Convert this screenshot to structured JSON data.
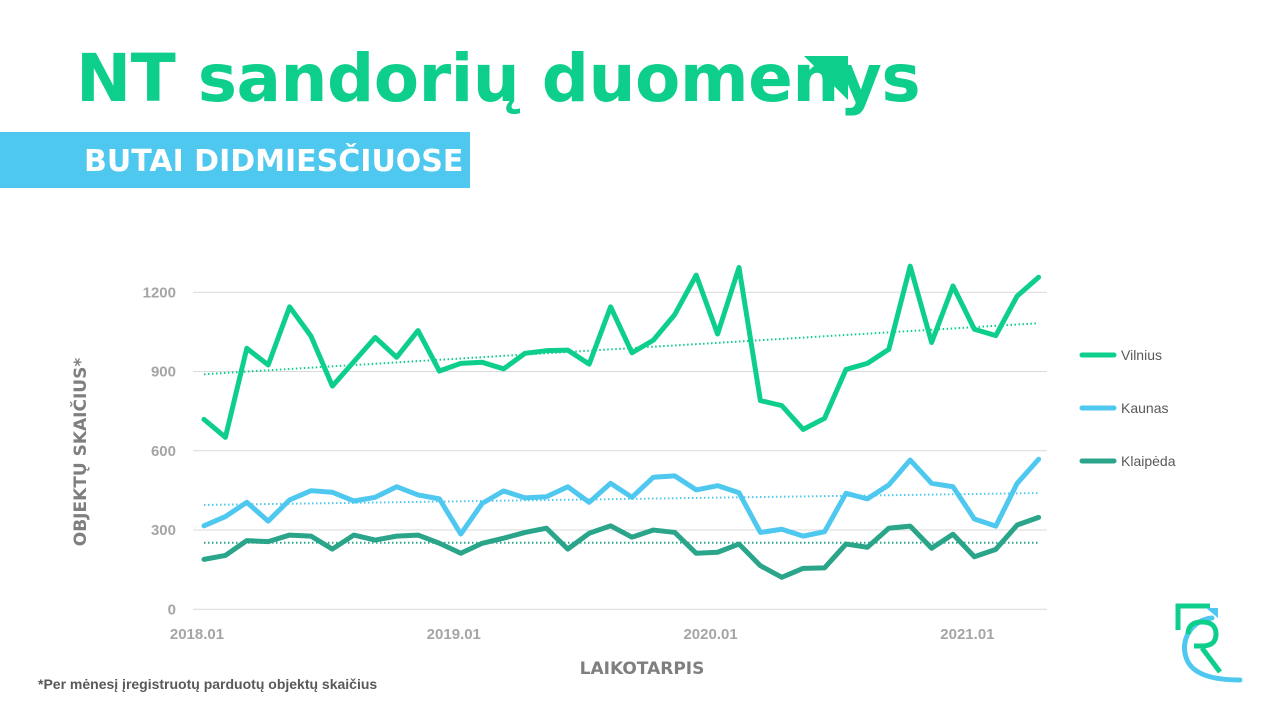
{
  "header": {
    "title": "NT sandorių duomenys",
    "subtitle": "BUTAI DIDMIESČIUOSE"
  },
  "footnote": "*Per mėnesį įregistruotų parduotų objektų skaičius",
  "colors": {
    "Vilnius": "#0dcf8b",
    "Kaunas": "#4fc8f0",
    "Klaipėda": "#2aa58a",
    "title": "#0dcf8b",
    "banner": "#4fc8f0"
  },
  "chart_data": {
    "type": "line",
    "xlabel": "LAIKOTARPIS",
    "ylabel": "OBJEKTŲ SKAIČIUS*",
    "ylim": [
      0,
      1200
    ],
    "yticks": [
      0,
      300,
      600,
      900,
      1200
    ],
    "x_start": "2018.01",
    "n_points": 40,
    "xtick_labels": [
      {
        "index": 0,
        "label": "2018.01"
      },
      {
        "index": 12,
        "label": "2019.01"
      },
      {
        "index": 24,
        "label": "2020.01"
      },
      {
        "index": 36,
        "label": "2021.01"
      }
    ],
    "grid": true,
    "legend_position": "right",
    "series": [
      {
        "name": "Vilnius",
        "values": [
          719,
          651,
          988,
          925,
          1145,
          1034,
          845,
          937,
          1029,
          954,
          1055,
          902,
          931,
          935,
          910,
          969,
          979,
          981,
          928,
          1145,
          971,
          1019,
          1116,
          1265,
          1042,
          1294,
          790,
          771,
          681,
          723,
          908,
          931,
          984,
          1299,
          1010,
          1224,
          1060,
          1036,
          1186,
          1257
        ],
        "trend": [
          890,
          1083
        ]
      },
      {
        "name": "Kaunas",
        "values": [
          316,
          351,
          405,
          334,
          414,
          449,
          443,
          410,
          424,
          464,
          433,
          418,
          285,
          401,
          448,
          422,
          426,
          464,
          405,
          477,
          424,
          500,
          505,
          452,
          468,
          441,
          291,
          303,
          277,
          294,
          439,
          418,
          471,
          565,
          477,
          464,
          342,
          315,
          477,
          568
        ],
        "trend": [
          395,
          440
        ]
      },
      {
        "name": "Klaipėda",
        "values": [
          189,
          204,
          260,
          256,
          281,
          277,
          228,
          281,
          262,
          277,
          281,
          250,
          212,
          250,
          269,
          291,
          307,
          228,
          288,
          316,
          273,
          300,
          291,
          212,
          216,
          247,
          165,
          121,
          155,
          157,
          247,
          235,
          307,
          315,
          231,
          284,
          199,
          227,
          319,
          348
        ],
        "trend": [
          252,
          252
        ]
      }
    ]
  }
}
